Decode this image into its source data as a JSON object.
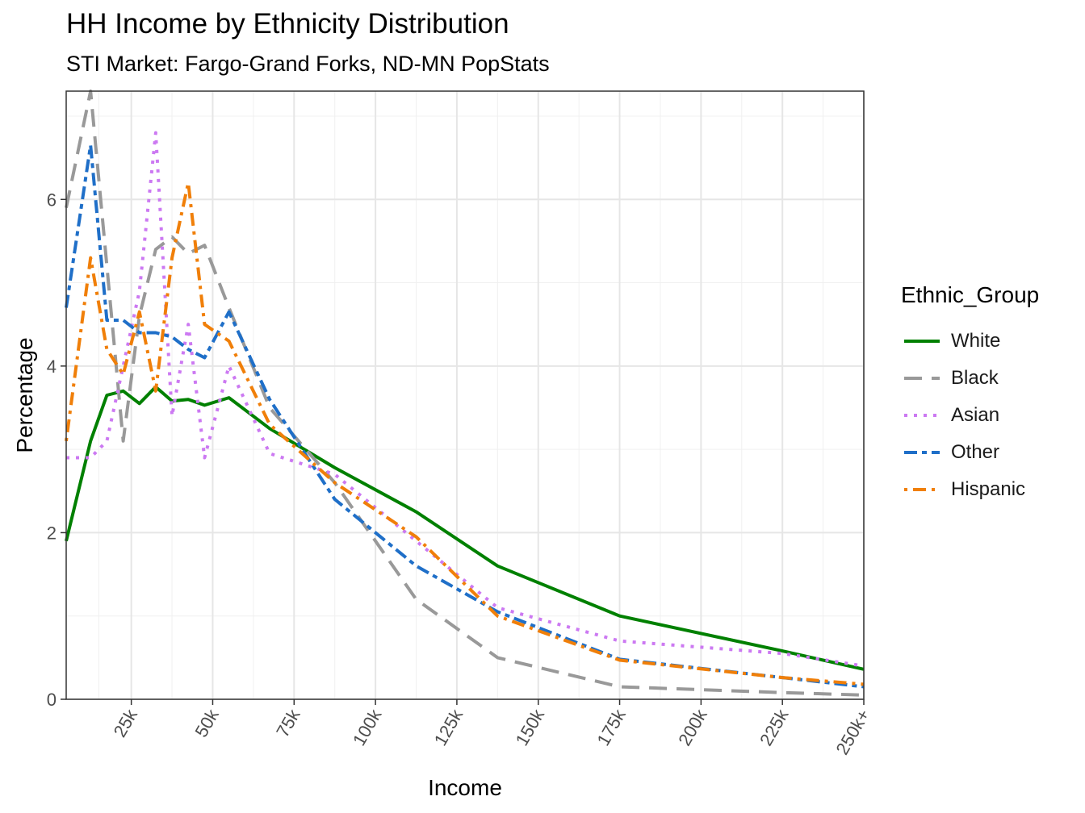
{
  "chart_data": {
    "type": "line",
    "title": "HH Income by Ethnicity Distribution",
    "subtitle": "STI Market: Fargo-Grand Forks, ND-MN PopStats",
    "xlabel": "Income",
    "ylabel": "Percentage",
    "xlim": [
      5,
      250
    ],
    "ylim": [
      0,
      7.3
    ],
    "x_ticks": [
      {
        "value": 25,
        "label": "25k"
      },
      {
        "value": 50,
        "label": "50k"
      },
      {
        "value": 75,
        "label": "75k"
      },
      {
        "value": 100,
        "label": "100k"
      },
      {
        "value": 125,
        "label": "125k"
      },
      {
        "value": 150,
        "label": "150k"
      },
      {
        "value": 175,
        "label": "175k"
      },
      {
        "value": 200,
        "label": "200k"
      },
      {
        "value": 225,
        "label": "225k"
      },
      {
        "value": 250,
        "label": "250k+"
      }
    ],
    "y_ticks": [
      0,
      2,
      4,
      6
    ],
    "grid": true,
    "legend_title": "Ethnic_Group",
    "legend_position": "right",
    "series": [
      {
        "name": "White",
        "color": "#008000",
        "dash": "solid",
        "points": [
          [
            5,
            1.9
          ],
          [
            12.5,
            3.1
          ],
          [
            17.5,
            3.65
          ],
          [
            22.5,
            3.7
          ],
          [
            27.5,
            3.55
          ],
          [
            32.5,
            3.75
          ],
          [
            37.5,
            3.58
          ],
          [
            42.5,
            3.6
          ],
          [
            47.5,
            3.53
          ],
          [
            55,
            3.62
          ],
          [
            67.5,
            3.25
          ],
          [
            87.5,
            2.78
          ],
          [
            112.5,
            2.25
          ],
          [
            137.5,
            1.6
          ],
          [
            175,
            1.0
          ],
          [
            225,
            0.58
          ],
          [
            250,
            0.36
          ]
        ]
      },
      {
        "name": "Black",
        "color": "#999999",
        "dash": "longdash",
        "points": [
          [
            5,
            5.9
          ],
          [
            12.5,
            7.3
          ],
          [
            17.5,
            5.2
          ],
          [
            22.5,
            3.1
          ],
          [
            27.5,
            4.6
          ],
          [
            32.5,
            5.4
          ],
          [
            37.5,
            5.55
          ],
          [
            42.5,
            5.35
          ],
          [
            47.5,
            5.45
          ],
          [
            55,
            4.7
          ],
          [
            67.5,
            3.5
          ],
          [
            87.5,
            2.6
          ],
          [
            112.5,
            1.2
          ],
          [
            137.5,
            0.5
          ],
          [
            175,
            0.15
          ],
          [
            225,
            0.08
          ],
          [
            250,
            0.05
          ]
        ]
      },
      {
        "name": "Asian",
        "color": "#cc79f2",
        "dash": "dotted",
        "points": [
          [
            5,
            2.9
          ],
          [
            12.5,
            2.9
          ],
          [
            17.5,
            3.1
          ],
          [
            22.5,
            4.0
          ],
          [
            27.5,
            4.9
          ],
          [
            32.5,
            6.8
          ],
          [
            37.5,
            3.4
          ],
          [
            42.5,
            4.5
          ],
          [
            47.5,
            2.9
          ],
          [
            55,
            4.0
          ],
          [
            67.5,
            2.95
          ],
          [
            87.5,
            2.7
          ],
          [
            112.5,
            1.9
          ],
          [
            137.5,
            1.1
          ],
          [
            175,
            0.7
          ],
          [
            225,
            0.55
          ],
          [
            250,
            0.4
          ]
        ]
      },
      {
        "name": "Other",
        "color": "#1f6fc8",
        "dash": "twodash",
        "points": [
          [
            5,
            4.7
          ],
          [
            12.5,
            6.65
          ],
          [
            17.5,
            4.55
          ],
          [
            22.5,
            4.55
          ],
          [
            27.5,
            4.4
          ],
          [
            32.5,
            4.4
          ],
          [
            37.5,
            4.35
          ],
          [
            42.5,
            4.2
          ],
          [
            47.5,
            4.1
          ],
          [
            55,
            4.65
          ],
          [
            67.5,
            3.6
          ],
          [
            87.5,
            2.4
          ],
          [
            112.5,
            1.6
          ],
          [
            137.5,
            1.05
          ],
          [
            175,
            0.48
          ],
          [
            225,
            0.26
          ],
          [
            250,
            0.15
          ]
        ]
      },
      {
        "name": "Hispanic",
        "color": "#f07f09",
        "dash": "dotdash",
        "points": [
          [
            5,
            3.1
          ],
          [
            12.5,
            5.3
          ],
          [
            17.5,
            4.2
          ],
          [
            22.5,
            3.9
          ],
          [
            27.5,
            4.65
          ],
          [
            32.5,
            3.7
          ],
          [
            37.5,
            5.3
          ],
          [
            42.5,
            6.2
          ],
          [
            47.5,
            4.5
          ],
          [
            55,
            4.3
          ],
          [
            67.5,
            3.3
          ],
          [
            87.5,
            2.6
          ],
          [
            112.5,
            1.95
          ],
          [
            137.5,
            1.0
          ],
          [
            175,
            0.47
          ],
          [
            225,
            0.26
          ],
          [
            250,
            0.18
          ]
        ]
      }
    ]
  }
}
